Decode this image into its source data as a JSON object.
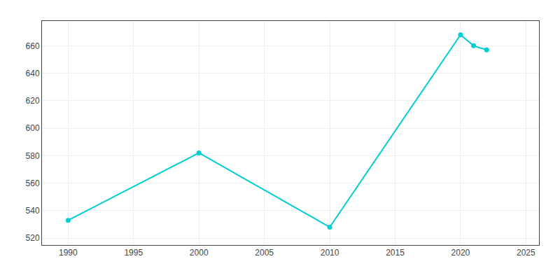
{
  "chart_data": {
    "type": "line",
    "x": [
      1990,
      2000,
      2010,
      2020,
      2021,
      2022
    ],
    "values": [
      533,
      582,
      528,
      668,
      660,
      657
    ],
    "color": "#00CED1",
    "marker": "circle",
    "xlim": [
      1988,
      2026
    ],
    "ylim": [
      515,
      678
    ],
    "xticks": [
      1990,
      1995,
      2000,
      2005,
      2010,
      2015,
      2020,
      2025
    ],
    "yticks": [
      520,
      540,
      560,
      580,
      600,
      620,
      640,
      660
    ],
    "grid": true
  }
}
